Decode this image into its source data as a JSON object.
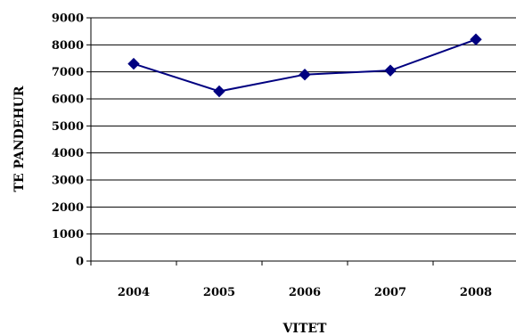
{
  "chart_data": {
    "type": "line",
    "title": "",
    "xlabel": "VITET",
    "ylabel": "TE PANDEHUR",
    "categories": [
      "2004",
      "2005",
      "2006",
      "2007",
      "2008"
    ],
    "series": [
      {
        "values": [
          7300,
          6280,
          6900,
          7050,
          8200
        ]
      }
    ],
    "ylim": [
      0,
      9000
    ],
    "y_ticks": [
      "0",
      "1000",
      "2000",
      "3000",
      "4000",
      "5000",
      "6000",
      "7000",
      "8000",
      "9000"
    ],
    "grid": true,
    "legend": "none",
    "marker": "diamond",
    "colors": {
      "series": "#000080",
      "grid": "#000000",
      "axis": "#000000"
    }
  }
}
